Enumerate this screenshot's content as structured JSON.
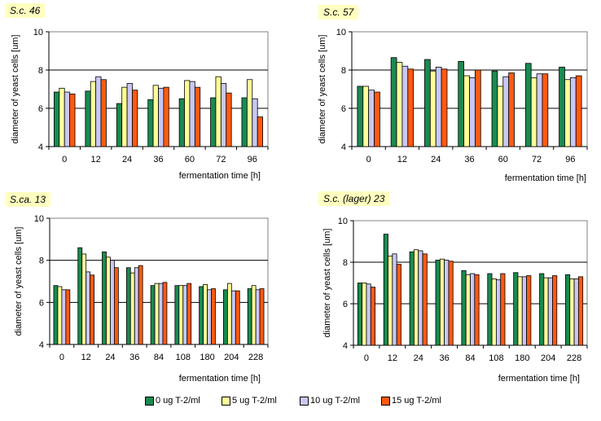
{
  "colors": {
    "series": [
      "#1a8a50",
      "#ffff99",
      "#c8c8f5",
      "#ff5a10"
    ],
    "plot_bg": "#ffffff",
    "title_bg": "#ffffc0"
  },
  "legend": {
    "items": [
      "0 ug T-2/ml",
      "5 ug T-2/ml",
      "10 ug T-2/ml",
      "15 ug T-2/ml"
    ]
  },
  "chart_data": [
    {
      "type": "bar",
      "title": "S.c. 46",
      "xlabel": "fermentation time [h]",
      "ylabel": "diameter of yeast cells [um]",
      "ylim": [
        4,
        10
      ],
      "yticks": [
        "4",
        "6",
        "8",
        "10"
      ],
      "categories": [
        "0",
        "12",
        "24",
        "36",
        "60",
        "72",
        "96"
      ],
      "series": [
        {
          "name": "0 ug T-2/ml",
          "values": [
            6.85,
            6.9,
            6.25,
            6.45,
            6.5,
            6.55,
            6.55
          ]
        },
        {
          "name": "5 ug T-2/ml",
          "values": [
            7.05,
            7.4,
            7.1,
            7.2,
            7.45,
            7.65,
            7.5
          ]
        },
        {
          "name": "10 ug T-2/ml",
          "values": [
            6.85,
            7.65,
            7.3,
            7.05,
            7.4,
            7.3,
            6.5
          ]
        },
        {
          "name": "15 ug T-2/ml",
          "values": [
            6.75,
            7.5,
            6.95,
            7.1,
            7.1,
            6.8,
            5.55
          ]
        }
      ]
    },
    {
      "type": "bar",
      "title": "S.c. 57",
      "xlabel": "fermentation time [h]",
      "ylabel": "diameter of yeast cells [um]",
      "ylim": [
        4,
        10
      ],
      "yticks": [
        "4",
        "6",
        "8",
        "10"
      ],
      "categories": [
        "0",
        "12",
        "24",
        "36",
        "60",
        "72",
        "96"
      ],
      "series": [
        {
          "name": "0 ug T-2/ml",
          "values": [
            7.15,
            8.65,
            8.55,
            8.45,
            7.95,
            8.35,
            8.15
          ]
        },
        {
          "name": "5 ug T-2/ml",
          "values": [
            7.15,
            8.4,
            7.95,
            7.7,
            7.15,
            7.6,
            7.5
          ]
        },
        {
          "name": "10 ug T-2/ml",
          "values": [
            6.95,
            8.2,
            8.15,
            7.6,
            7.65,
            7.8,
            7.6
          ]
        },
        {
          "name": "15 ug T-2/ml",
          "values": [
            6.85,
            8.05,
            8.05,
            8.0,
            7.85,
            7.8,
            7.7
          ]
        }
      ]
    },
    {
      "type": "bar",
      "title": "S.ca. 13",
      "xlabel": "fermentation time [h]",
      "ylabel": "diameter of yeast cells [um]",
      "ylim": [
        4,
        10
      ],
      "yticks": [
        "4",
        "6",
        "8",
        "10"
      ],
      "categories": [
        "0",
        "12",
        "24",
        "36",
        "84",
        "108",
        "180",
        "204",
        "228"
      ],
      "series": [
        {
          "name": "0 ug T-2/ml",
          "values": [
            6.8,
            8.6,
            8.4,
            7.65,
            6.8,
            6.8,
            6.75,
            6.6,
            6.65
          ]
        },
        {
          "name": "5 ug T-2/ml",
          "values": [
            6.75,
            8.3,
            8.15,
            7.4,
            6.9,
            6.8,
            6.85,
            6.9,
            6.8
          ]
        },
        {
          "name": "10 ug T-2/ml",
          "values": [
            6.6,
            7.45,
            8.0,
            7.65,
            6.9,
            6.8,
            6.6,
            6.55,
            6.6
          ]
        },
        {
          "name": "15 ug T-2/ml",
          "values": [
            6.6,
            7.3,
            7.65,
            7.75,
            6.95,
            6.9,
            6.65,
            6.55,
            6.65
          ]
        }
      ]
    },
    {
      "type": "bar",
      "title": "S.c. (lager) 23",
      "xlabel": "fermentation time [h]",
      "ylabel": "diameter of yeast cells [um]",
      "ylim": [
        4,
        10
      ],
      "yticks": [
        "4",
        "6",
        "8",
        "10"
      ],
      "categories": [
        "0",
        "12",
        "24",
        "36",
        "84",
        "108",
        "180",
        "204",
        "228"
      ],
      "series": [
        {
          "name": "0 ug T-2/ml",
          "values": [
            7.0,
            9.35,
            8.5,
            8.1,
            7.6,
            7.45,
            7.5,
            7.45,
            7.4
          ]
        },
        {
          "name": "5 ug T-2/ml",
          "values": [
            7.0,
            8.3,
            8.6,
            8.15,
            7.4,
            7.2,
            7.3,
            7.25,
            7.2
          ]
        },
        {
          "name": "10 ug T-2/ml",
          "values": [
            6.95,
            8.4,
            8.55,
            8.1,
            7.45,
            7.15,
            7.3,
            7.25,
            7.2
          ]
        },
        {
          "name": "15 ug T-2/ml",
          "values": [
            6.8,
            7.9,
            8.4,
            8.05,
            7.4,
            7.45,
            7.35,
            7.35,
            7.3
          ]
        }
      ]
    }
  ]
}
